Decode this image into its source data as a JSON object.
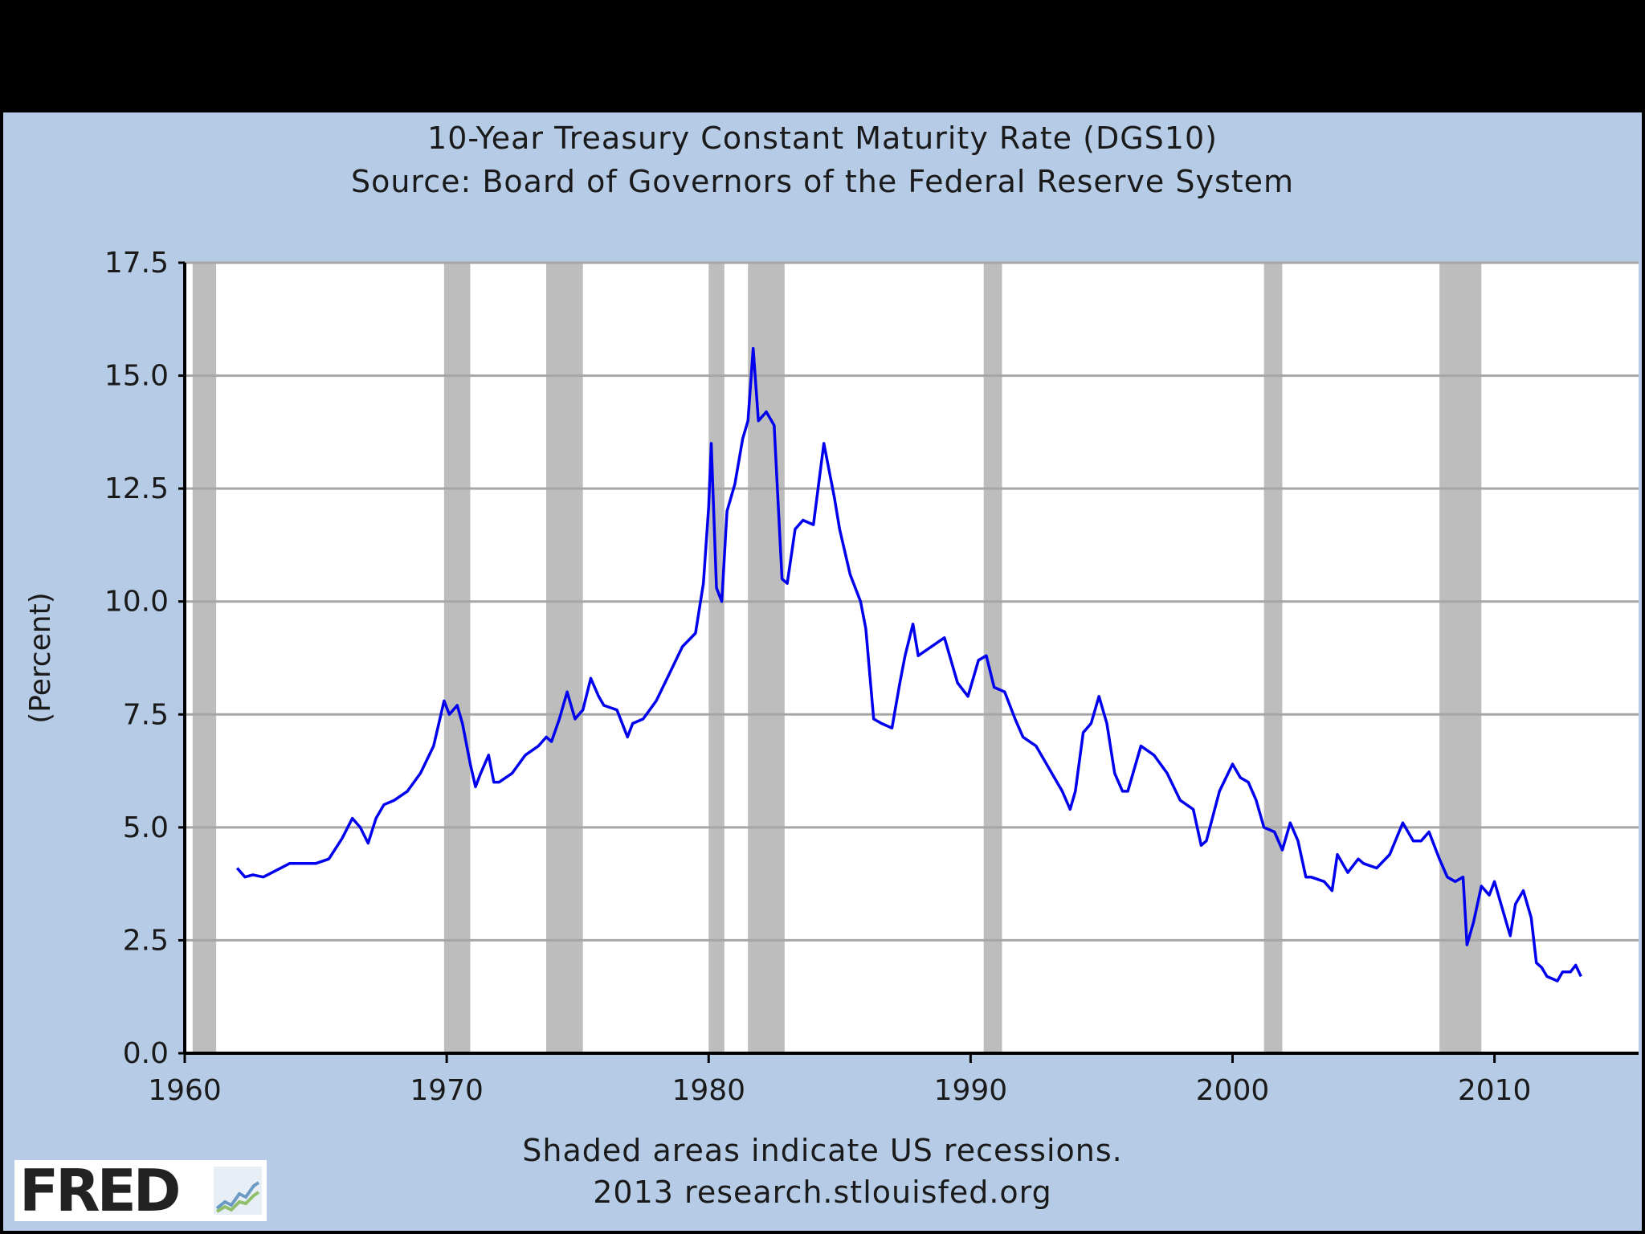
{
  "chart_data": {
    "type": "line",
    "title": "10-Year Treasury Constant Maturity Rate (DGS10)",
    "subtitle": "Source: Board of Governors of the Federal Reserve System",
    "xlabel": "",
    "ylabel": "(Percent)",
    "xlim": [
      1960,
      2015.5
    ],
    "ylim": [
      0,
      17.5
    ],
    "x_ticks": [
      1960,
      1970,
      1980,
      1990,
      2000,
      2010
    ],
    "y_ticks": [
      0,
      2.5,
      5,
      7.5,
      10,
      12.5,
      15,
      17.5
    ],
    "y_tick_labels": [
      "0.0",
      "2.5",
      "5.0",
      "7.5",
      "10.0",
      "12.5",
      "15.0",
      "17.5"
    ],
    "grid": "horizontal",
    "line_color": "#0000ee",
    "recession_color": "#bdbdbd",
    "recessions": [
      [
        1960.3,
        1961.2
      ],
      [
        1969.9,
        1970.9
      ],
      [
        1973.8,
        1975.2
      ],
      [
        1980.0,
        1980.6
      ],
      [
        1981.5,
        1982.9
      ],
      [
        1990.5,
        1991.2
      ],
      [
        2001.2,
        2001.9
      ],
      [
        2007.9,
        2009.5
      ]
    ],
    "series": [
      {
        "x": [
          1962.0,
          1962.3,
          1962.6,
          1963.0,
          1963.5,
          1964.0,
          1964.5,
          1965.0,
          1965.5,
          1966.0,
          1966.4,
          1966.7,
          1967.0,
          1967.3,
          1967.6,
          1968.0,
          1968.5,
          1969.0,
          1969.5,
          1969.9,
          1970.1,
          1970.4,
          1970.6,
          1970.9,
          1971.1,
          1971.3,
          1971.6,
          1971.8,
          1972.0,
          1972.5,
          1973.0,
          1973.5,
          1973.8,
          1974.0,
          1974.3,
          1974.6,
          1974.9,
          1975.2,
          1975.5,
          1975.8,
          1976.0,
          1976.5,
          1976.9,
          1977.1,
          1977.5,
          1978.0,
          1978.5,
          1979.0,
          1979.5,
          1979.8,
          1980.0,
          1980.1,
          1980.3,
          1980.5,
          1980.7,
          1981.0,
          1981.3,
          1981.5,
          1981.7,
          1981.9,
          1982.2,
          1982.5,
          1982.8,
          1983.0,
          1983.3,
          1983.6,
          1984.0,
          1984.4,
          1984.8,
          1985.0,
          1985.4,
          1985.8,
          1986.0,
          1986.3,
          1986.6,
          1987.0,
          1987.3,
          1987.5,
          1987.8,
          1988.0,
          1988.5,
          1989.0,
          1989.5,
          1989.9,
          1990.3,
          1990.6,
          1990.9,
          1991.3,
          1991.7,
          1992.0,
          1992.5,
          1993.0,
          1993.5,
          1993.8,
          1994.0,
          1994.3,
          1994.6,
          1994.9,
          1995.2,
          1995.5,
          1995.8,
          1996.0,
          1996.5,
          1997.0,
          1997.5,
          1998.0,
          1998.5,
          1998.8,
          1999.0,
          1999.5,
          2000.0,
          2000.3,
          2000.6,
          2000.9,
          2001.2,
          2001.6,
          2001.9,
          2002.2,
          2002.5,
          2002.8,
          2003.0,
          2003.5,
          2003.8,
          2004.0,
          2004.4,
          2004.8,
          2005.0,
          2005.5,
          2006.0,
          2006.5,
          2006.9,
          2007.2,
          2007.5,
          2007.9,
          2008.2,
          2008.5,
          2008.8,
          2008.95,
          2009.2,
          2009.5,
          2009.8,
          2010.0,
          2010.3,
          2010.6,
          2010.8,
          2011.1,
          2011.4,
          2011.6,
          2011.8,
          2012.0,
          2012.4,
          2012.6,
          2012.9,
          2013.1,
          2013.3
        ],
        "values": [
          4.1,
          3.9,
          3.95,
          3.9,
          4.05,
          4.2,
          4.2,
          4.2,
          4.3,
          4.75,
          5.2,
          5.0,
          4.65,
          5.2,
          5.5,
          5.6,
          5.8,
          6.2,
          6.8,
          7.8,
          7.5,
          7.7,
          7.3,
          6.4,
          5.9,
          6.2,
          6.6,
          6.0,
          6.0,
          6.2,
          6.6,
          6.8,
          7.0,
          6.9,
          7.4,
          8.0,
          7.4,
          7.6,
          8.3,
          7.9,
          7.7,
          7.6,
          7.0,
          7.3,
          7.4,
          7.8,
          8.4,
          9.0,
          9.3,
          10.4,
          12.1,
          13.5,
          10.3,
          10.0,
          12.0,
          12.6,
          13.6,
          14.0,
          15.6,
          14.0,
          14.2,
          13.9,
          10.5,
          10.4,
          11.6,
          11.8,
          11.7,
          13.5,
          12.3,
          11.6,
          10.6,
          10.0,
          9.4,
          7.4,
          7.3,
          7.2,
          8.2,
          8.8,
          9.5,
          8.8,
          9.0,
          9.2,
          8.2,
          7.9,
          8.7,
          8.8,
          8.1,
          8.0,
          7.4,
          7.0,
          6.8,
          6.3,
          5.8,
          5.4,
          5.8,
          7.1,
          7.3,
          7.9,
          7.3,
          6.2,
          5.8,
          5.8,
          6.8,
          6.6,
          6.2,
          5.6,
          5.4,
          4.6,
          4.7,
          5.8,
          6.4,
          6.1,
          6.0,
          5.6,
          5.0,
          4.9,
          4.5,
          5.1,
          4.7,
          3.9,
          3.9,
          3.8,
          3.6,
          4.4,
          4.0,
          4.3,
          4.2,
          4.1,
          4.4,
          5.1,
          4.7,
          4.7,
          4.9,
          4.3,
          3.9,
          3.8,
          3.9,
          2.4,
          2.9,
          3.7,
          3.5,
          3.8,
          3.2,
          2.6,
          3.3,
          3.6,
          3.0,
          2.0,
          1.9,
          1.7,
          1.6,
          1.8,
          1.8,
          1.95,
          1.7
        ]
      }
    ],
    "footer_note": "Shaded areas indicate US recessions.",
    "footer_source": "2013 research.stlouisfed.org",
    "logo_text": "FRED"
  }
}
